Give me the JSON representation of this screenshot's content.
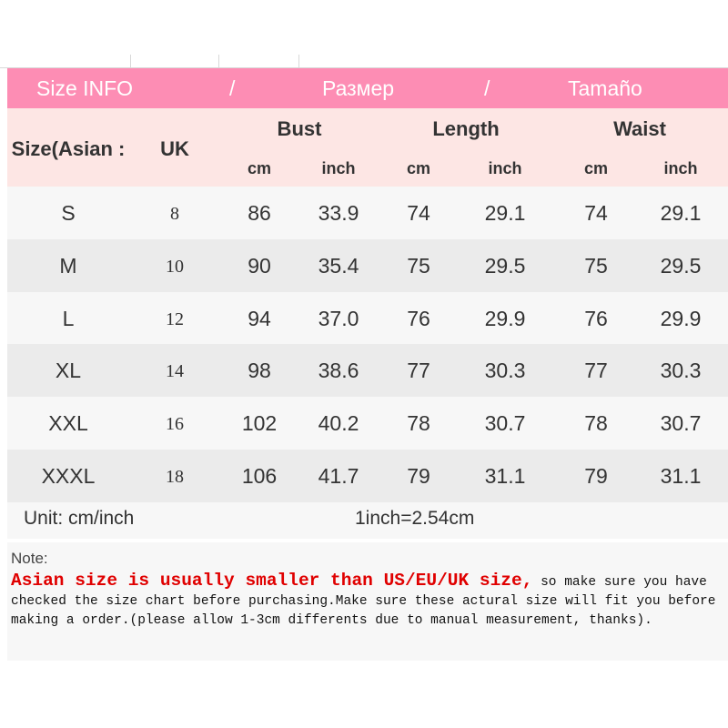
{
  "title": {
    "en": "Size INFO",
    "sep1": "/",
    "ru": "Размер",
    "sep2": "/",
    "es": "Tamaño"
  },
  "headers": {
    "size": "Size(Asian :",
    "uk": "UK",
    "bust": "Bust",
    "length": "Length",
    "waist": "Waist",
    "cm": "cm",
    "inch": "inch"
  },
  "rows": [
    [
      "S",
      "8",
      "86",
      "33.9",
      "74",
      "29.1",
      "74",
      "29.1"
    ],
    [
      "M",
      "10",
      "90",
      "35.4",
      "75",
      "29.5",
      "75",
      "29.5"
    ],
    [
      "L",
      "12",
      "94",
      "37.0",
      "76",
      "29.9",
      "76",
      "29.9"
    ],
    [
      "XL",
      "14",
      "98",
      "38.6",
      "77",
      "30.3",
      "77",
      "30.3"
    ],
    [
      "XXL",
      "16",
      "102",
      "40.2",
      "78",
      "30.7",
      "78",
      "30.7"
    ],
    [
      "XXXL",
      "18",
      "106",
      "41.7",
      "79",
      "31.1",
      "79",
      "31.1"
    ]
  ],
  "unit": {
    "label": "Unit: cm/inch",
    "conversion": "1inch=2.54cm"
  },
  "note": {
    "label": "Note:",
    "highlight": "Asian size is usually smaller than US/EU/UK size,",
    "text": " so make sure you have checked the size chart before purchasing.Make sure these actural size will fit you before making a order.(please allow 1-3cm differents due to manual measurement, thanks)."
  },
  "colors": {
    "title_bg": "#fd8db4",
    "subheader_bg": "#fde6e4",
    "highlight": "#e00000"
  }
}
